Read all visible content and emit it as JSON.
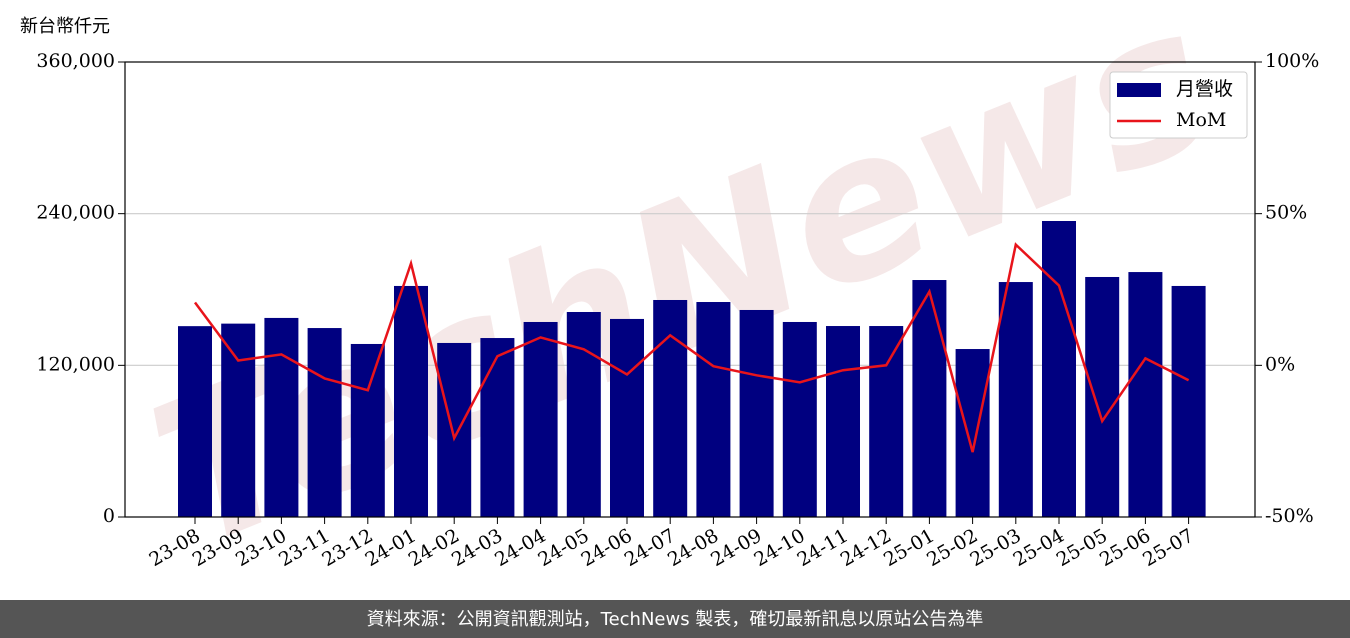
{
  "chart_data": {
    "type": "bar_line",
    "y_label": "新台幣仟元",
    "watermark": "TechNews",
    "footer": "資料來源：公開資訊觀測站，TechNews 製表，確切最新訊息以原站公告為準",
    "categories": [
      "23-08",
      "23-09",
      "23-10",
      "23-11",
      "23-12",
      "24-01",
      "24-02",
      "24-03",
      "24-04",
      "24-05",
      "24-06",
      "24-07",
      "24-08",
      "24-09",
      "24-10",
      "24-11",
      "24-12",
      "25-01",
      "25-02",
      "25-03",
      "25-04",
      "25-05",
      "25-06",
      "25-07"
    ],
    "series": [
      {
        "name": "月營收",
        "type": "bar",
        "color": "#000080",
        "axis": "y",
        "values": [
          151000,
          153000,
          157500,
          149500,
          136900,
          182800,
          137700,
          141600,
          154300,
          162200,
          156700,
          171700,
          170100,
          163800,
          154300,
          151100,
          151100,
          187500,
          132900,
          185900,
          234200,
          189900,
          193800,
          182800
        ]
      },
      {
        "name": "MoM",
        "type": "line",
        "color": "#e8141b",
        "axis": "y2",
        "values": [
          20.7,
          1.6,
          3.6,
          -4.3,
          -8.2,
          33.6,
          -24.0,
          3.0,
          9.2,
          5.3,
          -3.0,
          9.9,
          -0.3,
          -3.3,
          -5.6,
          -1.6,
          0,
          24.3,
          -28.6,
          39.8,
          26.3,
          -18.4,
          2.3,
          -4.9
        ]
      }
    ],
    "ylim": [
      0,
      360000
    ],
    "yticks": [
      0,
      {
        "value": 120000,
        "label": "120,000"
      },
      {
        "value": 240000,
        "label": "240,000"
      },
      {
        "value": 360000,
        "label": "360,000"
      }
    ],
    "y2lim": [
      -50,
      100
    ],
    "y2ticks": [
      {
        "value": -50,
        "label": "-50%"
      },
      {
        "value": 0,
        "label": "0%"
      },
      {
        "value": 50,
        "label": "50%"
      },
      {
        "value": 100,
        "label": "100%"
      }
    ],
    "grid": true,
    "legend": "upper right"
  }
}
